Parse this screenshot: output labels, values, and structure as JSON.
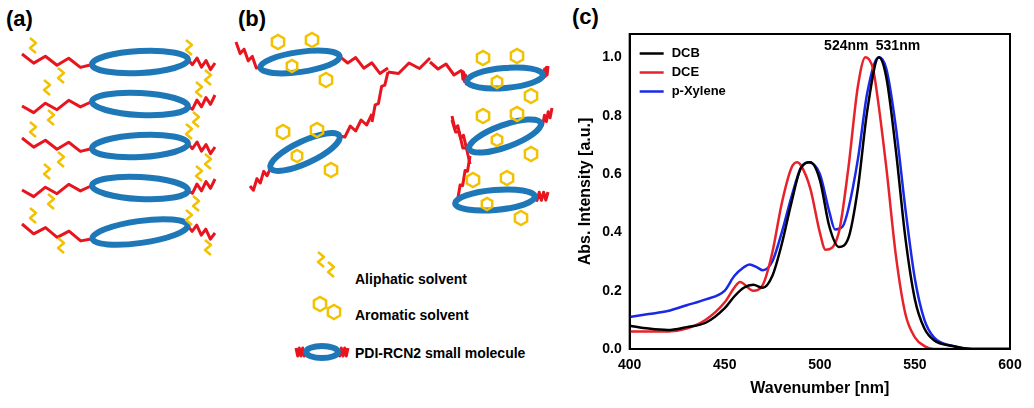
{
  "diagram": {
    "panel_labels": [
      "(a)",
      "(b)"
    ],
    "key": [
      "Aliphatic solvent",
      "Aromatic solvent",
      "PDI-RCN2 small molecule"
    ]
  },
  "chart_data": {
    "panel_label": "(c)",
    "type": "line",
    "x_label": "Wavenumber [nm]",
    "y_label": "Abs. Intensity [a.u.]",
    "xlim": [
      400,
      600
    ],
    "xticks": [
      400,
      450,
      500,
      550,
      600
    ],
    "ylim": [
      0,
      1.08
    ],
    "yticks": [
      {
        "value": 0,
        "label": "0.0"
      },
      0.2,
      0.4,
      0.6,
      0.8,
      {
        "value": 1,
        "label": "1.0"
      }
    ],
    "grid": false,
    "legend": "upper left",
    "annotations": [
      {
        "text": "524nm",
        "x": 524,
        "y": 1.0
      },
      {
        "text": "531nm",
        "x": 531,
        "y": 1.0
      }
    ],
    "series": [
      {
        "name": "DCB",
        "color": "#000000",
        "x": [
          400,
          410,
          420,
          430,
          440,
          450,
          455,
          460,
          465,
          470,
          475,
          480,
          485,
          490,
          495,
          500,
          505,
          510,
          515,
          520,
          525,
          531,
          535,
          540,
          545,
          550,
          555,
          560,
          570,
          580,
          590,
          600
        ],
        "values": [
          0.08,
          0.07,
          0.065,
          0.075,
          0.09,
          0.14,
          0.18,
          0.21,
          0.22,
          0.21,
          0.25,
          0.36,
          0.5,
          0.62,
          0.64,
          0.58,
          0.42,
          0.35,
          0.38,
          0.55,
          0.82,
          1.0,
          0.93,
          0.68,
          0.38,
          0.17,
          0.07,
          0.03,
          0.01,
          0,
          0,
          0
        ]
      },
      {
        "name": "DCE",
        "color": "#e8222a",
        "x": [
          400,
          410,
          420,
          430,
          440,
          450,
          455,
          458,
          465,
          470,
          475,
          480,
          485,
          488,
          490,
          495,
          500,
          503,
          510,
          515,
          520,
          524,
          528,
          530,
          535,
          540,
          545,
          550,
          555,
          560,
          570,
          580,
          590,
          600
        ],
        "values": [
          0.06,
          0.06,
          0.06,
          0.07,
          0.1,
          0.16,
          0.21,
          0.23,
          0.2,
          0.22,
          0.33,
          0.5,
          0.62,
          0.64,
          0.63,
          0.55,
          0.4,
          0.34,
          0.4,
          0.62,
          0.9,
          1.0,
          0.96,
          0.88,
          0.62,
          0.32,
          0.12,
          0.04,
          0.01,
          0,
          0,
          0,
          0,
          0
        ]
      },
      {
        "name": "p-Xylene",
        "color": "#1a28e8",
        "x": [
          400,
          410,
          420,
          430,
          440,
          450,
          455,
          460,
          463,
          467,
          470,
          475,
          480,
          485,
          490,
          494,
          500,
          505,
          508,
          512,
          515,
          520,
          525,
          531,
          535,
          540,
          545,
          550,
          555,
          560,
          570,
          580,
          590,
          600
        ],
        "values": [
          0.11,
          0.12,
          0.13,
          0.15,
          0.17,
          0.2,
          0.25,
          0.28,
          0.29,
          0.28,
          0.27,
          0.3,
          0.4,
          0.52,
          0.62,
          0.64,
          0.6,
          0.47,
          0.41,
          0.42,
          0.48,
          0.65,
          0.88,
          1.0,
          0.96,
          0.76,
          0.48,
          0.24,
          0.1,
          0.04,
          0.01,
          0,
          0,
          0
        ]
      }
    ]
  }
}
